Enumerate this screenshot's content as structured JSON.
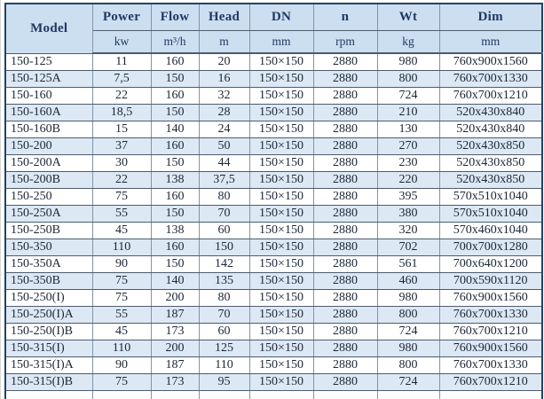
{
  "table": {
    "columns": [
      {
        "label": "Model",
        "unit": ""
      },
      {
        "label": "Power",
        "unit": "kw"
      },
      {
        "label": "Flow",
        "unit": "m³/h"
      },
      {
        "label": "Head",
        "unit": "m"
      },
      {
        "label": "DN",
        "unit": "mm"
      },
      {
        "label": "n",
        "unit": "rpm"
      },
      {
        "label": "Wt",
        "unit": "kg"
      },
      {
        "label": "Dim",
        "unit": "mm"
      }
    ],
    "rows": [
      [
        "150-125",
        "11",
        "160",
        "20",
        "150×150",
        "2880",
        "980",
        "760x900x1560"
      ],
      [
        "150-125A",
        "7,5",
        "150",
        "16",
        "150×150",
        "2880",
        "800",
        "760x700x1330"
      ],
      [
        "150-160",
        "22",
        "160",
        "32",
        "150×150",
        "2880",
        "724",
        "760x700x1210"
      ],
      [
        "150-160A",
        "18,5",
        "150",
        "28",
        "150×150",
        "2880",
        "210",
        "520x430x840"
      ],
      [
        "150-160B",
        "15",
        "140",
        "24",
        "150×150",
        "2880",
        "130",
        "520x430x840"
      ],
      [
        "150-200",
        "37",
        "160",
        "50",
        "150×150",
        "2880",
        "270",
        "520x430x850"
      ],
      [
        "150-200A",
        "30",
        "150",
        "44",
        "150×150",
        "2880",
        "230",
        "520x430x850"
      ],
      [
        "150-200B",
        "22",
        "138",
        "37,5",
        "150×150",
        "2880",
        "220",
        "520x430x850"
      ],
      [
        "150-250",
        "75",
        "160",
        "80",
        "150×150",
        "2880",
        "395",
        "570x510x1040"
      ],
      [
        "150-250A",
        "55",
        "150",
        "70",
        "150×150",
        "2880",
        "380",
        "570x510x1040"
      ],
      [
        "150-250B",
        "45",
        "138",
        "60",
        "150×150",
        "2880",
        "320",
        "570x460x1040"
      ],
      [
        "150-350",
        "110",
        "160",
        "150",
        "150×150",
        "2880",
        "702",
        "700x700x1280"
      ],
      [
        "150-350A",
        "90",
        "150",
        "142",
        "150×150",
        "2880",
        "561",
        "700x640x1200"
      ],
      [
        "150-350B",
        "75",
        "140",
        "135",
        "150×150",
        "2880",
        "460",
        "700x590x1120"
      ],
      [
        "150-250(I)",
        "75",
        "200",
        "80",
        "150×150",
        "2880",
        "980",
        "760x900x1560"
      ],
      [
        "150-250(I)A",
        "55",
        "187",
        "70",
        "150×150",
        "2880",
        "800",
        "760x700x1330"
      ],
      [
        "150-250(I)B",
        "45",
        "173",
        "60",
        "150×150",
        "2880",
        "724",
        "760x700x1210"
      ],
      [
        "150-315(I)",
        "110",
        "200",
        "125",
        "150×150",
        "2880",
        "980",
        "760x900x1560"
      ],
      [
        "150-315(I)A",
        "90",
        "187",
        "110",
        "150×150",
        "2880",
        "800",
        "760x700x1330"
      ],
      [
        "150-315(I)B",
        "75",
        "173",
        "95",
        "150×150",
        "2880",
        "724",
        "760x700x1210"
      ]
    ]
  },
  "colors": {
    "header_bg": "#cbdff0",
    "stripe_bg": "#dce9f5",
    "header_text": "#1f3864",
    "cell_text": "#1c2635",
    "border_outer": "#24425f"
  }
}
